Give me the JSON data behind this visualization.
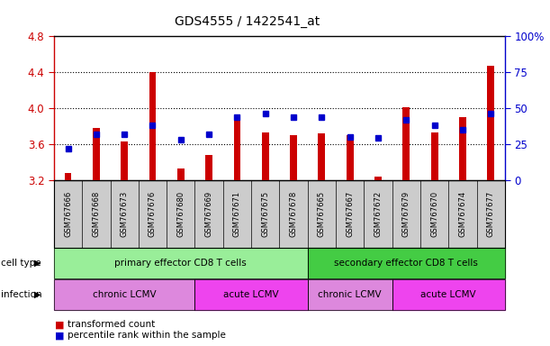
{
  "title": "GDS4555 / 1422541_at",
  "samples": [
    "GSM767666",
    "GSM767668",
    "GSM767673",
    "GSM767676",
    "GSM767680",
    "GSM767669",
    "GSM767671",
    "GSM767675",
    "GSM767678",
    "GSM767665",
    "GSM767667",
    "GSM767672",
    "GSM767679",
    "GSM767670",
    "GSM767674",
    "GSM767677"
  ],
  "red_values": [
    3.28,
    3.78,
    3.63,
    4.4,
    3.33,
    3.48,
    3.9,
    3.73,
    3.7,
    3.72,
    3.7,
    3.24,
    4.01,
    3.73,
    3.9,
    4.47
  ],
  "blue_pct": [
    22,
    32,
    32,
    38,
    28,
    32,
    44,
    46,
    44,
    44,
    30,
    29,
    42,
    38,
    35,
    46
  ],
  "ymin": 3.2,
  "ymax": 4.8,
  "yticks": [
    3.2,
    3.6,
    4.0,
    4.4,
    4.8
  ],
  "y2ticks": [
    0,
    25,
    50,
    75,
    100
  ],
  "red_color": "#cc0000",
  "blue_color": "#0000cc",
  "bar_width": 0.25,
  "cell_groups": [
    {
      "label": "primary effector CD8 T cells",
      "start": 0,
      "end": 9,
      "color": "#99ee99"
    },
    {
      "label": "secondary effector CD8 T cells",
      "start": 9,
      "end": 16,
      "color": "#44cc44"
    }
  ],
  "infect_groups": [
    {
      "label": "chronic LCMV",
      "start": 0,
      "end": 5,
      "color": "#dd88dd"
    },
    {
      "label": "acute LCMV",
      "start": 5,
      "end": 9,
      "color": "#ee44ee"
    },
    {
      "label": "chronic LCMV",
      "start": 9,
      "end": 12,
      "color": "#dd88dd"
    },
    {
      "label": "acute LCMV",
      "start": 12,
      "end": 16,
      "color": "#ee44ee"
    }
  ]
}
